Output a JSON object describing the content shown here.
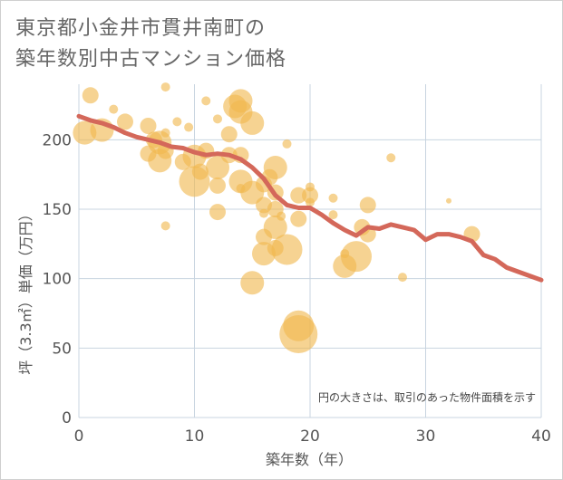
{
  "title_line1": "東京都小金井市貫井南町の",
  "title_line2": "築年数別中古マンション価格",
  "chart_data": {
    "type": "scatter",
    "xlabel": "築年数（年）",
    "ylabel": "坪（3.3㎡）単価（万円）",
    "xlim": [
      0,
      40
    ],
    "ylim": [
      0,
      240
    ],
    "xticks": [
      0,
      10,
      20,
      30,
      40
    ],
    "yticks": [
      0,
      50,
      100,
      150,
      200
    ],
    "grid": true,
    "note": "円の大きさは、取引のあった物件面積を示す",
    "colors": {
      "bubble": "#f0b84f",
      "trend": "#d4685a",
      "grid": "#c8d4e0"
    },
    "bubbles": [
      {
        "x": 0.5,
        "y": 205,
        "s": 3
      },
      {
        "x": 1,
        "y": 232,
        "s": 2
      },
      {
        "x": 2,
        "y": 207,
        "s": 3
      },
      {
        "x": 3,
        "y": 222,
        "s": 1
      },
      {
        "x": 4,
        "y": 213,
        "s": 2
      },
      {
        "x": 6,
        "y": 210,
        "s": 2
      },
      {
        "x": 6,
        "y": 190,
        "s": 2
      },
      {
        "x": 6.5,
        "y": 200,
        "s": 2
      },
      {
        "x": 7,
        "y": 198,
        "s": 3
      },
      {
        "x": 7,
        "y": 185,
        "s": 3
      },
      {
        "x": 7.5,
        "y": 192,
        "s": 2
      },
      {
        "x": 7.5,
        "y": 238,
        "s": 1
      },
      {
        "x": 7.5,
        "y": 205,
        "s": 1
      },
      {
        "x": 7.5,
        "y": 138,
        "s": 1
      },
      {
        "x": 8.5,
        "y": 213,
        "s": 1
      },
      {
        "x": 9,
        "y": 184,
        "s": 2
      },
      {
        "x": 9.5,
        "y": 209,
        "s": 1
      },
      {
        "x": 10,
        "y": 188,
        "s": 3
      },
      {
        "x": 10,
        "y": 170,
        "s": 4
      },
      {
        "x": 10.5,
        "y": 177,
        "s": 2
      },
      {
        "x": 11,
        "y": 228,
        "s": 1
      },
      {
        "x": 11,
        "y": 192,
        "s": 2
      },
      {
        "x": 12,
        "y": 215,
        "s": 1
      },
      {
        "x": 12,
        "y": 180,
        "s": 3
      },
      {
        "x": 12,
        "y": 167,
        "s": 2
      },
      {
        "x": 12,
        "y": 148,
        "s": 2
      },
      {
        "x": 13,
        "y": 204,
        "s": 2
      },
      {
        "x": 13,
        "y": 189,
        "s": 2
      },
      {
        "x": 13.5,
        "y": 224,
        "s": 3
      },
      {
        "x": 14,
        "y": 228,
        "s": 3
      },
      {
        "x": 14,
        "y": 220,
        "s": 3
      },
      {
        "x": 14,
        "y": 189,
        "s": 2
      },
      {
        "x": 14,
        "y": 170,
        "s": 3
      },
      {
        "x": 14,
        "y": 165,
        "s": 1
      },
      {
        "x": 15,
        "y": 212,
        "s": 3
      },
      {
        "x": 15,
        "y": 162,
        "s": 3
      },
      {
        "x": 15,
        "y": 97,
        "s": 3
      },
      {
        "x": 16,
        "y": 168,
        "s": 2
      },
      {
        "x": 16,
        "y": 153,
        "s": 2
      },
      {
        "x": 16,
        "y": 147,
        "s": 1
      },
      {
        "x": 16,
        "y": 130,
        "s": 2
      },
      {
        "x": 16,
        "y": 118,
        "s": 3
      },
      {
        "x": 16.5,
        "y": 173,
        "s": 2
      },
      {
        "x": 17,
        "y": 180,
        "s": 3
      },
      {
        "x": 17,
        "y": 162,
        "s": 2
      },
      {
        "x": 17,
        "y": 150,
        "s": 2
      },
      {
        "x": 17,
        "y": 137,
        "s": 3
      },
      {
        "x": 17,
        "y": 122,
        "s": 2
      },
      {
        "x": 17.5,
        "y": 145,
        "s": 1
      },
      {
        "x": 18,
        "y": 197,
        "s": 1
      },
      {
        "x": 18,
        "y": 121,
        "s": 4
      },
      {
        "x": 19,
        "y": 160,
        "s": 2
      },
      {
        "x": 19,
        "y": 143,
        "s": 2
      },
      {
        "x": 19,
        "y": 66,
        "s": 4
      },
      {
        "x": 19,
        "y": 60,
        "s": 5
      },
      {
        "x": 20,
        "y": 166,
        "s": 1
      },
      {
        "x": 20,
        "y": 160,
        "s": 2
      },
      {
        "x": 20,
        "y": 155,
        "s": 1
      },
      {
        "x": 22,
        "y": 158,
        "s": 1
      },
      {
        "x": 22,
        "y": 146,
        "s": 1
      },
      {
        "x": 23,
        "y": 118,
        "s": 1
      },
      {
        "x": 23,
        "y": 109,
        "s": 3
      },
      {
        "x": 24,
        "y": 116,
        "s": 4
      },
      {
        "x": 24.5,
        "y": 137,
        "s": 2
      },
      {
        "x": 25,
        "y": 132,
        "s": 2
      },
      {
        "x": 25,
        "y": 153,
        "s": 2
      },
      {
        "x": 27,
        "y": 187,
        "s": 1
      },
      {
        "x": 28,
        "y": 101,
        "s": 1
      },
      {
        "x": 32,
        "y": 156,
        "s": 0
      },
      {
        "x": 34,
        "y": 132,
        "s": 2
      }
    ],
    "trend": {
      "x": [
        0,
        1,
        2,
        3,
        4,
        5,
        6,
        7,
        8,
        9,
        10,
        11,
        12,
        13,
        14,
        15,
        16,
        17,
        18,
        19,
        20,
        21,
        22,
        23,
        24,
        25,
        26,
        27,
        28,
        29,
        30,
        31,
        32,
        33,
        34,
        35,
        36,
        37,
        38,
        39,
        40
      ],
      "y": [
        217,
        214,
        212,
        209,
        205,
        202,
        200,
        198,
        195,
        194,
        191,
        189,
        190,
        189,
        186,
        180,
        172,
        160,
        153,
        151,
        151,
        146,
        140,
        135,
        131,
        137,
        136,
        139,
        137,
        135,
        128,
        132,
        132,
        130,
        127,
        117,
        114,
        108,
        105,
        102,
        99
      ]
    }
  }
}
